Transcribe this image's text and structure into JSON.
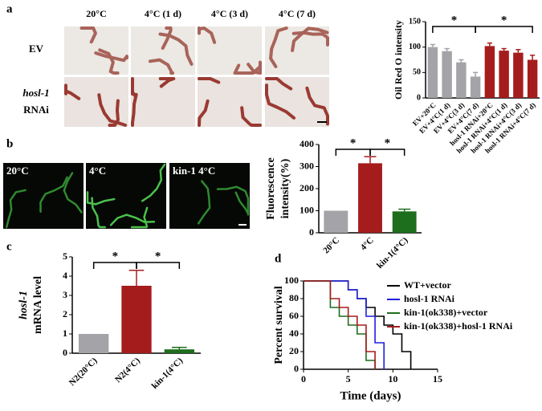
{
  "figure": {
    "panel_labels": [
      "a",
      "b",
      "c",
      "d"
    ],
    "panel_a": {
      "columns": [
        "20°C",
        "4°C (1 d)",
        "4°C (3 d)",
        "4°C (7 d)"
      ],
      "rows": [
        "EV",
        "hosl-1",
        "RNAi"
      ]
    },
    "panel_b": {
      "captions": [
        "20°C",
        "4°C",
        "kin-1 4°C"
      ]
    }
  },
  "chart_data": [
    {
      "type": "bar",
      "ylabel": [
        "Oil Red O intensity"
      ],
      "categories": [
        "EV+20°C",
        "EV+4°C(1 d)",
        "EV+4°C(3 d)",
        "EV+4°C(7 d)",
        "hosl-1 RNAi+20°C",
        "hosl-1 RNAi+4°C(1 d)",
        "hosl-1 RNAi+4°C(3 d)",
        "hosl-1 RNAi+4°C(7 d)"
      ],
      "values": [
        100,
        92,
        70,
        42,
        102,
        93,
        89,
        75
      ],
      "errors": [
        5,
        5,
        5,
        8,
        6,
        4,
        6,
        9
      ],
      "colors": [
        "#a3a3a8",
        "#a3a3a8",
        "#a3a3a8",
        "#a3a3a8",
        "#a51c1c",
        "#a51c1c",
        "#a51c1c",
        "#a51c1c"
      ],
      "ylim": [
        0,
        150
      ],
      "yticks": [
        0,
        50,
        100,
        150
      ],
      "annotations": [
        "*",
        "*"
      ]
    },
    {
      "type": "bar",
      "ylabel": [
        "Fluorescence",
        "intensity(%)"
      ],
      "categories": [
        "20°C",
        "4°C",
        "kin-1(4°C)"
      ],
      "values": [
        100,
        315,
        97
      ],
      "errors": [
        0,
        30,
        10
      ],
      "colors": [
        "#a3a3a8",
        "#a51c1c",
        "#1d6e1d"
      ],
      "ylim": [
        0,
        400
      ],
      "yticks": [
        0,
        100,
        200,
        300,
        400
      ],
      "annotations": [
        "*",
        "*"
      ]
    },
    {
      "type": "bar",
      "ylabel": [
        "hosl-1",
        "mRNA level"
      ],
      "categories": [
        "N2(20°C)",
        "N2(4°C)",
        "kin-1(4°C)"
      ],
      "values": [
        1,
        3.5,
        0.2
      ],
      "errors": [
        0,
        0.8,
        0.1
      ],
      "colors": [
        "#a3a3a8",
        "#a51c1c",
        "#1d6e1d"
      ],
      "ylim": [
        0,
        5
      ],
      "yticks": [
        0,
        1,
        2,
        3,
        4,
        5
      ],
      "annotations": [
        "*",
        "*"
      ]
    },
    {
      "type": "line",
      "xlabel": "Time (days)",
      "ylabel": [
        "Percent survival"
      ],
      "xlim": [
        0,
        15
      ],
      "xticks": [
        0,
        5,
        10,
        15
      ],
      "ylim": [
        0,
        100
      ],
      "yticks": [
        0,
        20,
        40,
        60,
        80,
        100
      ],
      "series": [
        {
          "name": "WT+vector",
          "color": "#000000",
          "x": [
            0,
            5,
            6,
            7,
            8,
            9,
            10,
            11,
            12
          ],
          "values": [
            100,
            90,
            80,
            70,
            60,
            50,
            40,
            20,
            0
          ]
        },
        {
          "name": "hosl-1 RNAi",
          "color": "#1f1fe0",
          "x": [
            0,
            5,
            6,
            7,
            8,
            9
          ],
          "values": [
            100,
            90,
            80,
            60,
            30,
            0
          ]
        },
        {
          "name": "kin-1(ok338)+vector",
          "color": "#1d6e1d",
          "x": [
            0,
            3,
            4,
            5,
            6,
            7,
            8
          ],
          "values": [
            100,
            70,
            60,
            50,
            40,
            10,
            0
          ]
        },
        {
          "name": "kin-1(ok338)+hosl-1 RNAi",
          "color": "#a51c1c",
          "x": [
            0,
            3,
            4,
            5,
            6,
            7,
            8
          ],
          "values": [
            100,
            80,
            70,
            60,
            50,
            20,
            0
          ]
        }
      ]
    }
  ]
}
